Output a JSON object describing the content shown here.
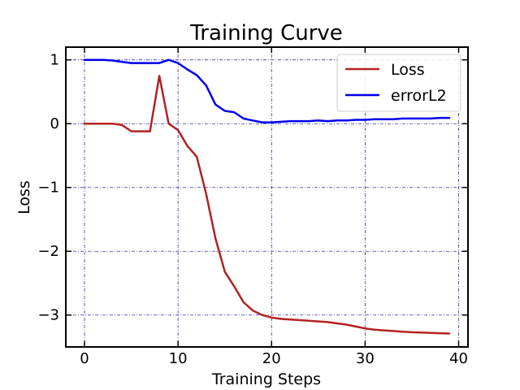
{
  "chart_data": {
    "type": "line",
    "title": "Training Curve",
    "xlabel": "Training Steps",
    "ylabel": "Loss",
    "xlim": [
      -2,
      41
    ],
    "ylim": [
      -3.5,
      1.2
    ],
    "xticks": [
      0,
      10,
      20,
      30,
      40
    ],
    "yticks": [
      1,
      0,
      -1,
      -2,
      -3
    ],
    "xtick_labels": [
      "0",
      "10",
      "20",
      "30",
      "40"
    ],
    "ytick_labels": [
      "1",
      "0",
      "−1",
      "−2",
      "−3"
    ],
    "grid": true,
    "legend_position": "upper right",
    "series": [
      {
        "name": "Loss",
        "color": "#b22222",
        "x": [
          0,
          1,
          2,
          3,
          4,
          5,
          6,
          7,
          8,
          9,
          10,
          11,
          12,
          13,
          14,
          15,
          16,
          17,
          18,
          19,
          20,
          21,
          22,
          23,
          24,
          25,
          26,
          27,
          28,
          29,
          30,
          31,
          32,
          33,
          34,
          35,
          36,
          37,
          38,
          39
        ],
        "y": [
          0.0,
          0.0,
          0.0,
          0.0,
          -0.02,
          -0.12,
          -0.12,
          -0.12,
          0.75,
          0.0,
          -0.1,
          -0.35,
          -0.52,
          -1.1,
          -1.8,
          -2.32,
          -2.55,
          -2.8,
          -2.93,
          -3.0,
          -3.04,
          -3.06,
          -3.07,
          -3.08,
          -3.09,
          -3.1,
          -3.11,
          -3.13,
          -3.15,
          -3.18,
          -3.21,
          -3.23,
          -3.24,
          -3.25,
          -3.26,
          -3.27,
          -3.275,
          -3.28,
          -3.285,
          -3.29
        ]
      },
      {
        "name": "errorL2",
        "color": "#0000ee",
        "x": [
          0,
          1,
          2,
          3,
          4,
          5,
          6,
          7,
          8,
          9,
          10,
          11,
          12,
          13,
          14,
          15,
          16,
          17,
          18,
          19,
          20,
          21,
          22,
          23,
          24,
          25,
          26,
          27,
          28,
          29,
          30,
          31,
          32,
          33,
          34,
          35,
          36,
          37,
          38,
          39
        ],
        "y": [
          1.0,
          1.0,
          1.0,
          0.99,
          0.97,
          0.95,
          0.95,
          0.95,
          0.95,
          1.0,
          0.95,
          0.85,
          0.76,
          0.6,
          0.3,
          0.2,
          0.18,
          0.08,
          0.05,
          0.02,
          0.02,
          0.03,
          0.04,
          0.04,
          0.04,
          0.05,
          0.04,
          0.05,
          0.05,
          0.06,
          0.06,
          0.07,
          0.07,
          0.07,
          0.08,
          0.08,
          0.08,
          0.08,
          0.09,
          0.09
        ]
      }
    ]
  }
}
